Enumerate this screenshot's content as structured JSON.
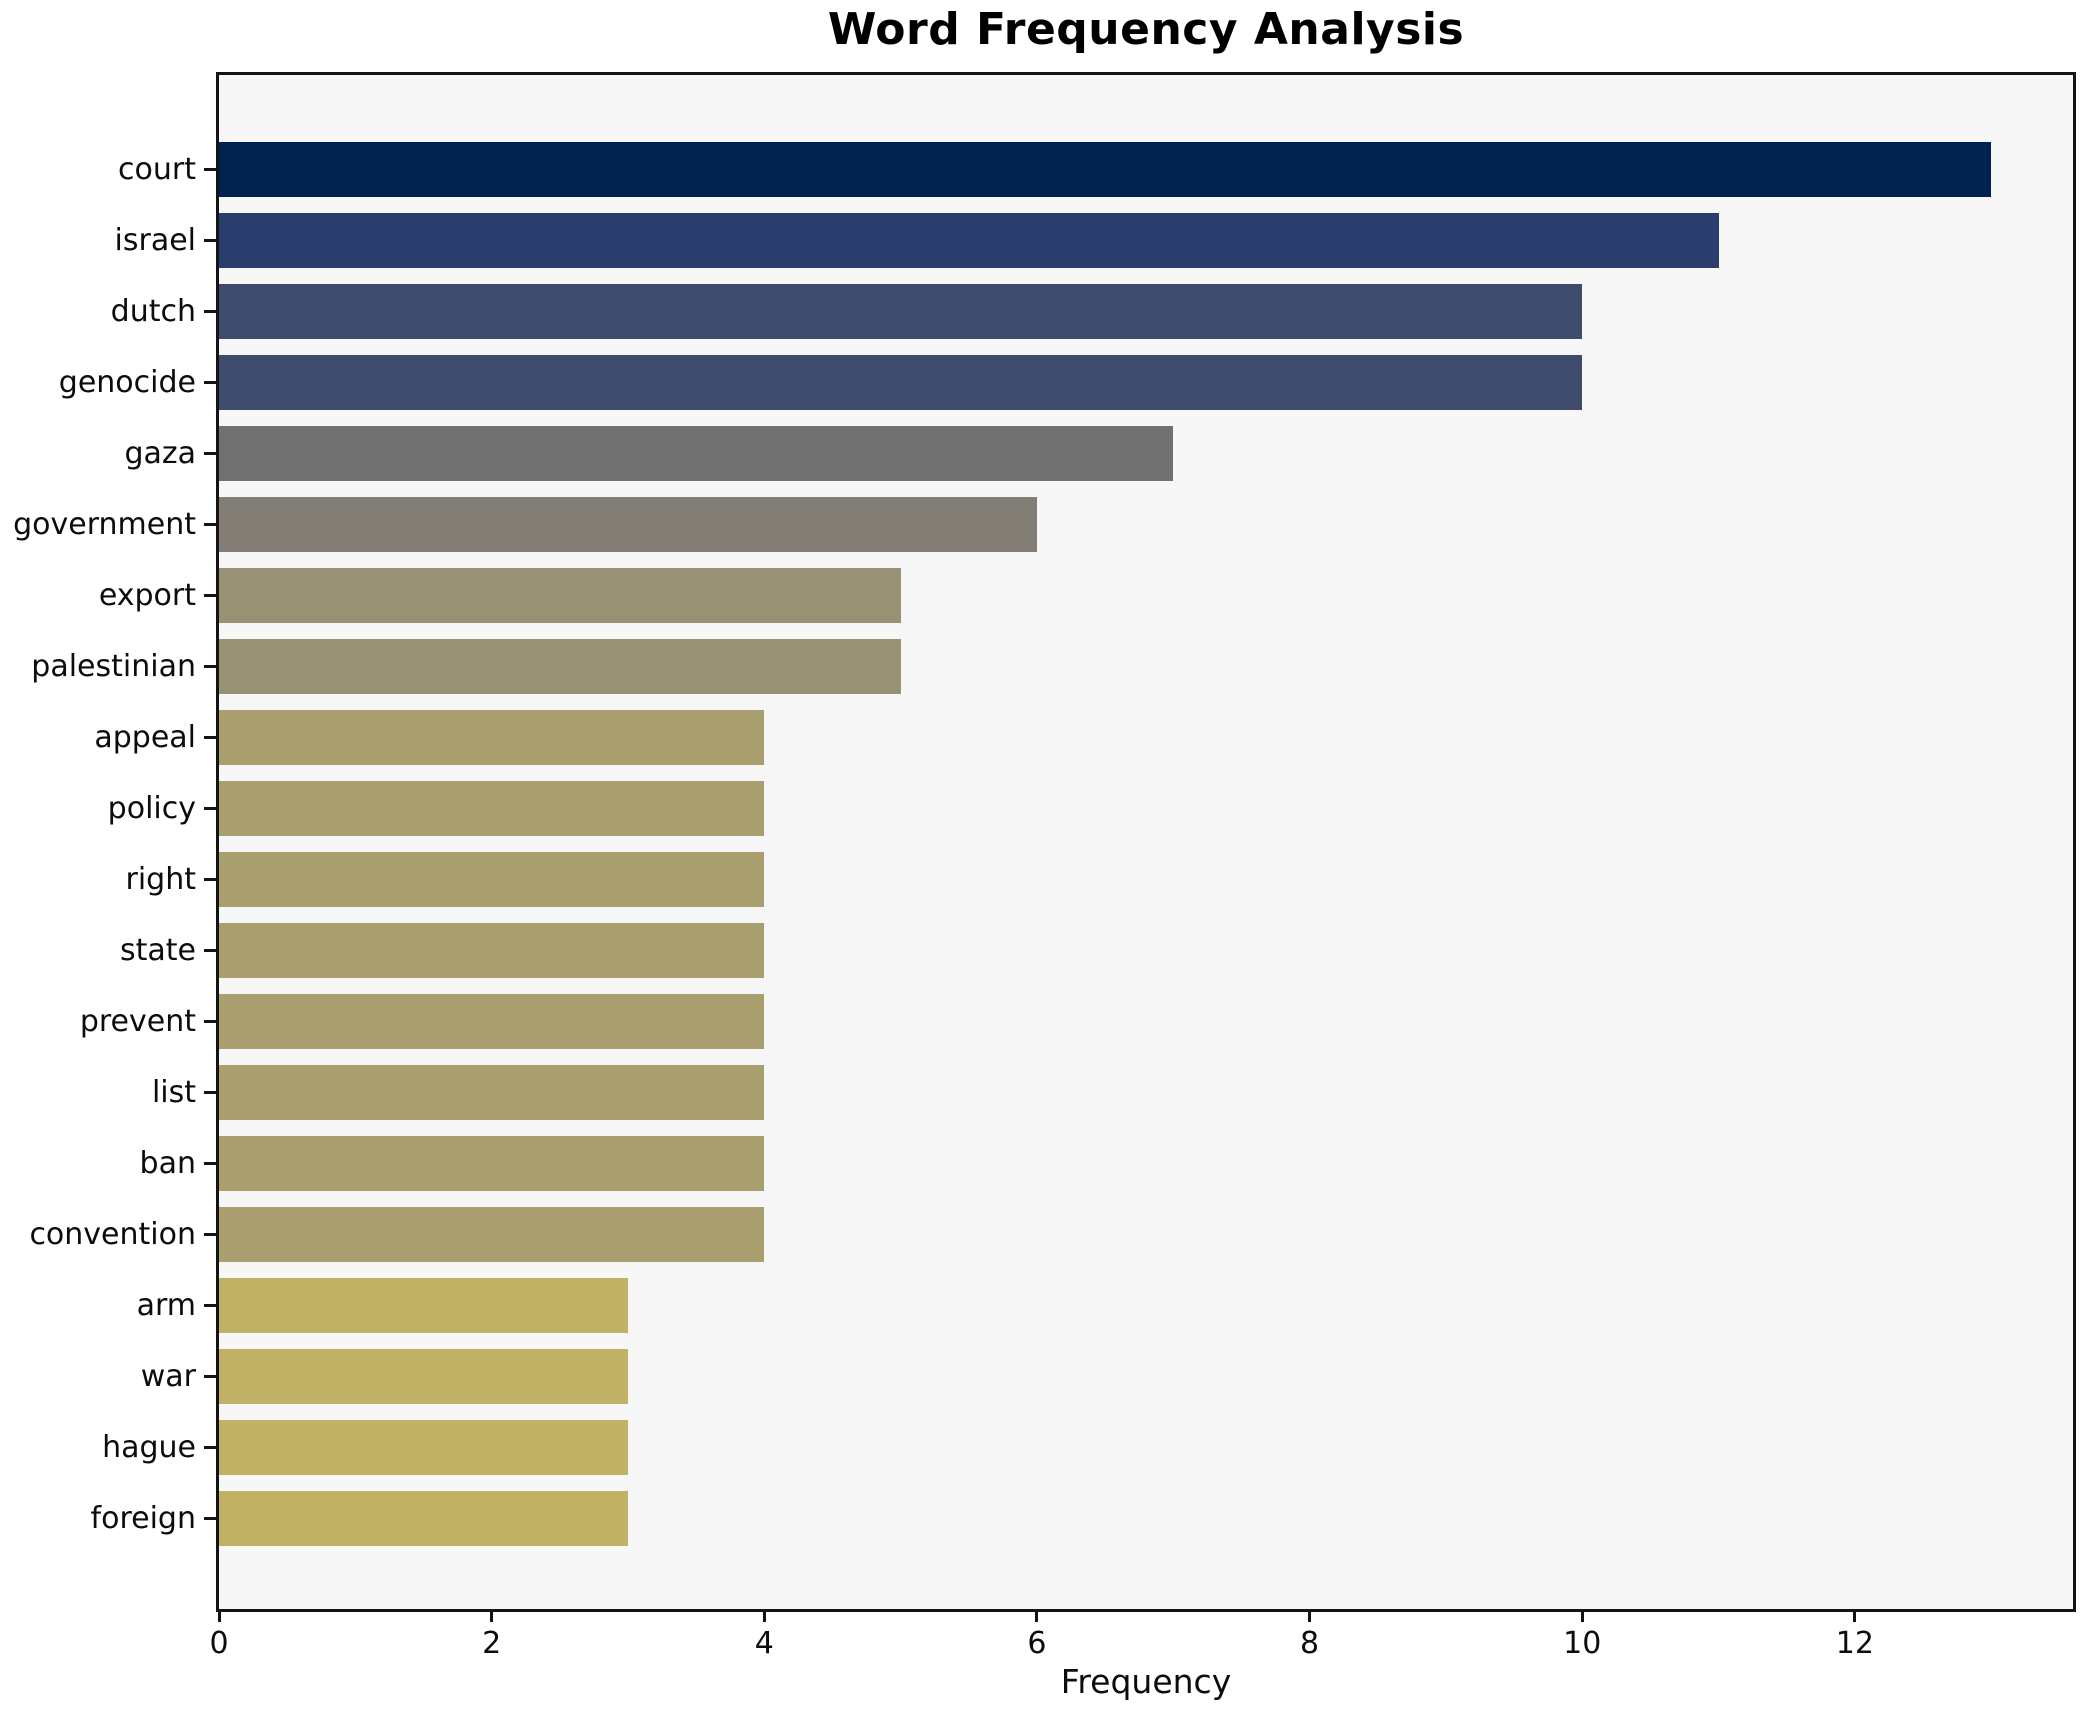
{
  "title": "Word Frequency Analysis",
  "chart_data": {
    "type": "bar",
    "orientation": "horizontal",
    "title": "Word Frequency Analysis",
    "xlabel": "Frequency",
    "ylabel": "",
    "categories": [
      "court",
      "israel",
      "dutch",
      "genocide",
      "gaza",
      "government",
      "export",
      "palestinian",
      "appeal",
      "policy",
      "right",
      "state",
      "prevent",
      "list",
      "ban",
      "convention",
      "arm",
      "war",
      "hague",
      "foreign"
    ],
    "values": [
      13,
      11,
      10,
      10,
      7,
      6,
      5,
      5,
      4,
      4,
      4,
      4,
      4,
      4,
      4,
      4,
      3,
      3,
      3,
      3
    ],
    "bar_colors": [
      "#00224e",
      "#2a3e6e",
      "#3f4b6d",
      "#3f4b6d",
      "#717172",
      "#827e76",
      "#989174",
      "#989174",
      "#aaa06f",
      "#aaa06f",
      "#aaa06f",
      "#aaa06f",
      "#aaa06f",
      "#aaa06f",
      "#aaa06f",
      "#aaa06f",
      "#c1b164",
      "#c1b164",
      "#c1b164",
      "#c1b164"
    ],
    "xticks": [
      0,
      2,
      4,
      6,
      8,
      10,
      12
    ],
    "xlim": [
      0,
      13.6
    ],
    "grid": false,
    "legend": null,
    "plot_background": "#f7f7f7",
    "figure_background": "#ffffff",
    "spine_color": "#141414"
  }
}
